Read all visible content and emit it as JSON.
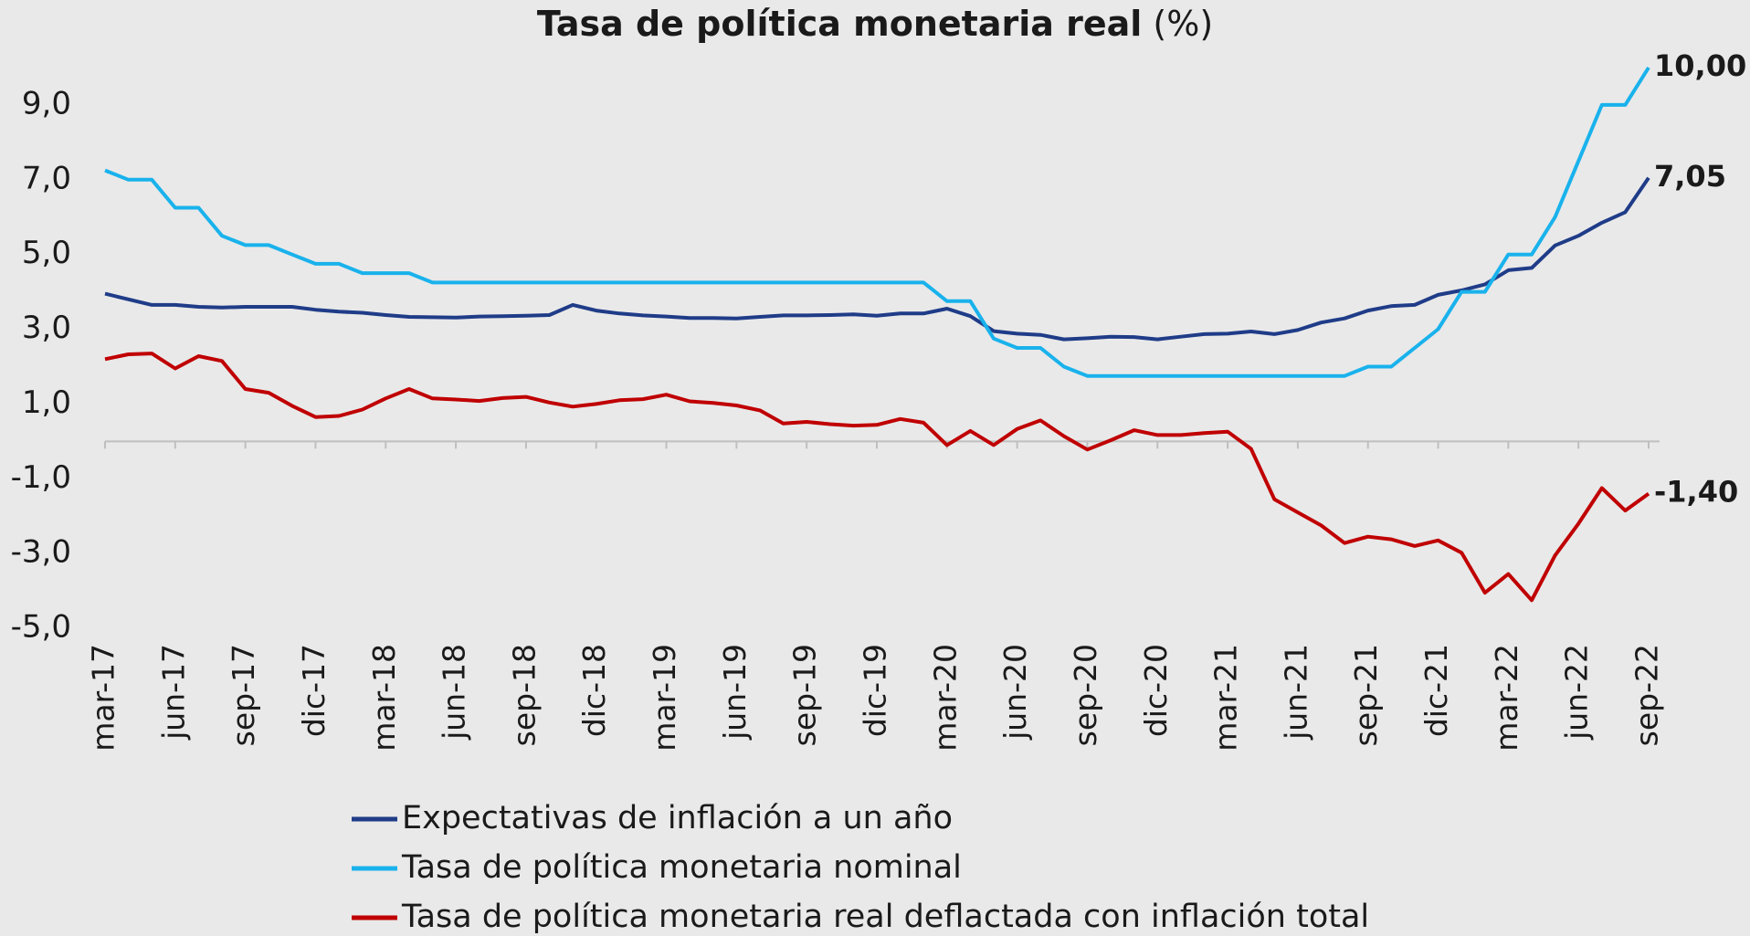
{
  "chart_data": {
    "type": "line",
    "title": "Tasa de política monetaria  real",
    "title_suffix": "(%)",
    "categories": [
      "mar-17",
      null,
      null,
      "jun-17",
      null,
      null,
      "sep-17",
      null,
      null,
      "dic-17",
      null,
      null,
      "mar-18",
      null,
      null,
      "jun-18",
      null,
      null,
      "sep-18",
      null,
      null,
      "dic-18",
      null,
      null,
      "mar-19",
      null,
      null,
      "jun-19",
      null,
      null,
      "sep-19",
      null,
      null,
      "dic-19",
      null,
      null,
      "mar-20",
      null,
      null,
      "jun-20",
      null,
      null,
      "sep-20",
      null,
      null,
      "dic-20",
      null,
      null,
      "mar-21",
      null,
      null,
      "jun-21",
      null,
      null,
      "sep-21",
      null,
      null,
      "dic-21",
      null,
      null,
      "mar-22",
      null,
      null,
      "jun-22",
      null,
      null,
      "sep-22"
    ],
    "series": [
      {
        "name": "Expectativas de inflación a un año",
        "color": "#1f3c88",
        "end_label": "7,05",
        "values": [
          3.95,
          3.8,
          3.65,
          3.65,
          3.6,
          3.58,
          3.6,
          3.6,
          3.6,
          3.52,
          3.47,
          3.44,
          3.38,
          3.33,
          3.32,
          3.31,
          3.34,
          3.35,
          3.36,
          3.38,
          3.65,
          3.5,
          3.42,
          3.37,
          3.34,
          3.3,
          3.3,
          3.29,
          3.33,
          3.37,
          3.37,
          3.38,
          3.4,
          3.36,
          3.42,
          3.42,
          3.55,
          3.35,
          2.95,
          2.88,
          2.85,
          2.73,
          2.76,
          2.8,
          2.79,
          2.73,
          2.8,
          2.87,
          2.88,
          2.94,
          2.87,
          2.98,
          3.18,
          3.29,
          3.5,
          3.62,
          3.65,
          3.92,
          4.04,
          4.2,
          4.58,
          4.64,
          5.24,
          5.5,
          5.85,
          6.13,
          7.05
        ]
      },
      {
        "name": "Tasa de política monetaria nominal",
        "color": "#19b2ec",
        "end_label": "10,00",
        "values": [
          7.25,
          7.0,
          7.0,
          6.25,
          6.25,
          5.5,
          5.25,
          5.25,
          5.0,
          4.75,
          4.75,
          4.5,
          4.5,
          4.5,
          4.25,
          4.25,
          4.25,
          4.25,
          4.25,
          4.25,
          4.25,
          4.25,
          4.25,
          4.25,
          4.25,
          4.25,
          4.25,
          4.25,
          4.25,
          4.25,
          4.25,
          4.25,
          4.25,
          4.25,
          4.25,
          4.25,
          3.75,
          3.75,
          2.75,
          2.5,
          2.5,
          2.0,
          1.75,
          1.75,
          1.75,
          1.75,
          1.75,
          1.75,
          1.75,
          1.75,
          1.75,
          1.75,
          1.75,
          1.75,
          2.0,
          2.0,
          2.5,
          3.0,
          4.0,
          4.0,
          5.0,
          5.0,
          6.0,
          7.5,
          9.0,
          9.0,
          10.0
        ]
      },
      {
        "name": "Tasa de política monetaria real deflactada con inflación total",
        "color": "#c00000",
        "end_label": "-1,40",
        "values": [
          2.2,
          2.33,
          2.35,
          1.95,
          2.28,
          2.15,
          1.4,
          1.3,
          0.95,
          0.65,
          0.68,
          0.85,
          1.15,
          1.4,
          1.15,
          1.12,
          1.08,
          1.16,
          1.19,
          1.04,
          0.93,
          1.0,
          1.1,
          1.13,
          1.25,
          1.07,
          1.03,
          0.96,
          0.83,
          0.48,
          0.52,
          0.46,
          0.42,
          0.44,
          0.6,
          0.5,
          -0.1,
          0.28,
          -0.1,
          0.33,
          0.56,
          0.14,
          -0.22,
          0.03,
          0.3,
          0.17,
          0.17,
          0.22,
          0.26,
          -0.2,
          -1.55,
          -1.9,
          -2.25,
          -2.72,
          -2.55,
          -2.62,
          -2.8,
          -2.65,
          -2.98,
          -4.05,
          -3.55,
          -4.25,
          -3.05,
          -2.2,
          -1.25,
          -1.85,
          -1.4
        ]
      }
    ],
    "ylim": [
      -5,
      10
    ],
    "yticks": [
      {
        "value": -5,
        "label": "-5,0"
      },
      {
        "value": -3,
        "label": "-3,0"
      },
      {
        "value": -1,
        "label": "-1,0"
      },
      {
        "value": 1,
        "label": "1,0"
      },
      {
        "value": 3,
        "label": "3,0"
      },
      {
        "value": 5,
        "label": "5,0"
      },
      {
        "value": 7,
        "label": "7,0"
      },
      {
        "value": 9,
        "label": "9,0"
      }
    ],
    "grid": false
  }
}
